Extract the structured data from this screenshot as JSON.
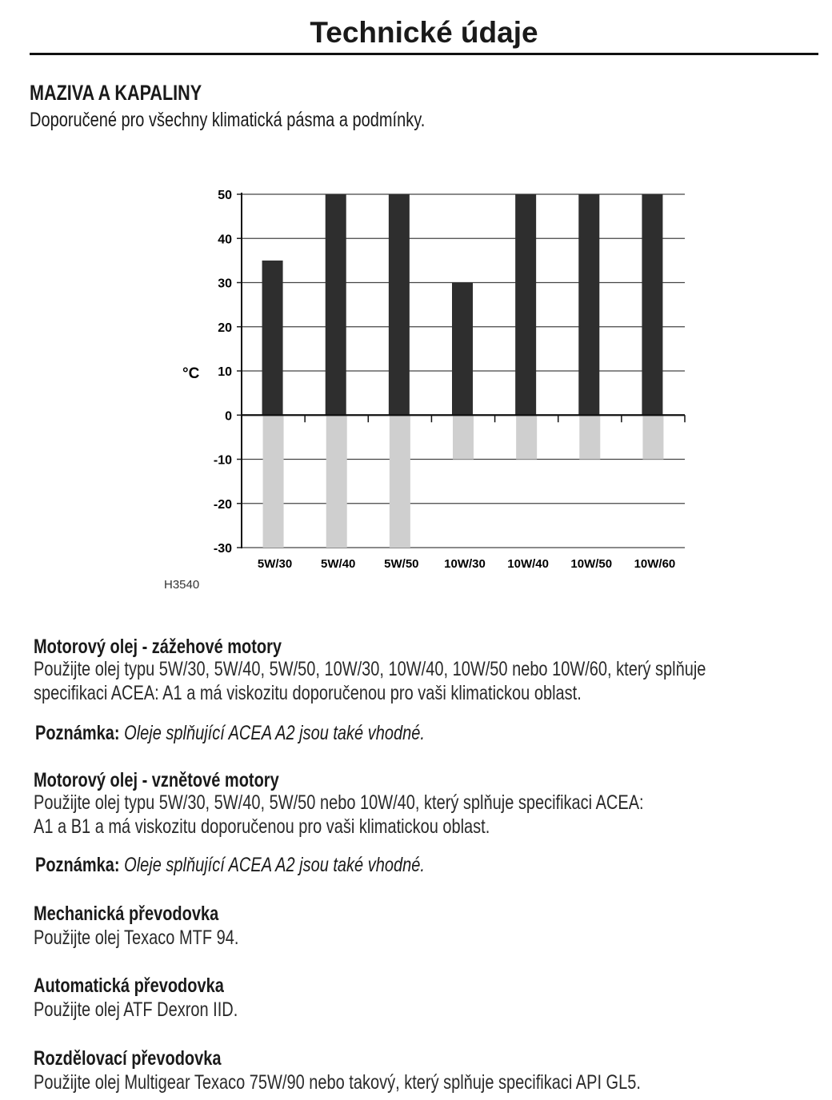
{
  "header": {
    "title": "Technické údaje"
  },
  "section": {
    "title": "MAZIVA A KAPALINY",
    "subtitle": "Doporučené pro všechny klimatická pásma a podmínky."
  },
  "chart_data": {
    "type": "bar",
    "ylabel": "°C",
    "ylim": [
      -30,
      50
    ],
    "yticks": [
      "50",
      "40",
      "30",
      "20",
      "10",
      "0",
      "-10",
      "-20",
      "-30"
    ],
    "grid": true,
    "categories": [
      "5W/30",
      "5W/40",
      "5W/50",
      "10W/30",
      "10W/40",
      "10W/50",
      "10W/60"
    ],
    "upper_limits": [
      35,
      50,
      50,
      30,
      50,
      50,
      50
    ],
    "lower_limits": [
      -30,
      -30,
      -30,
      -10,
      -10,
      -10,
      -10
    ],
    "colors": {
      "upper": "#2e2e2e",
      "lower": "#cfcfcf"
    },
    "figure_code": "H3540"
  },
  "sections": [
    {
      "heading": "Motorový olej - zážehové motory",
      "lines": [
        "Použijte olej typu 5W/30, 5W/40, 5W/50, 10W/30, 10W/40, 10W/50 nebo 10W/60, který splňuje",
        "specifikaci ACEA: A1 a má viskozitu doporučenou pro vaši klimatickou oblast."
      ],
      "note_label": "Poznámka:",
      "note_text": "Oleje splňující ACEA A2 jsou také vhodné."
    },
    {
      "heading": "Motorový olej - vznětové motory",
      "lines": [
        "Použijte olej typu 5W/30, 5W/40, 5W/50 nebo 10W/40, který splňuje specifikaci ACEA:",
        "A1 a B1 a má viskozitu doporučenou pro vaši klimatickou oblast."
      ],
      "note_label": "Poznámka:",
      "note_text": "Oleje splňující ACEA A2 jsou také vhodné."
    },
    {
      "heading": "Mechanická převodovka",
      "lines": [
        "Použijte olej Texaco MTF 94."
      ]
    },
    {
      "heading": "Automatická převodovka",
      "lines": [
        "Použijte olej ATF Dexron IID."
      ]
    },
    {
      "heading": "Rozdělovací převodovka",
      "lines": [
        "Použijte olej Multigear Texaco 75W/90 nebo takový, který splňuje specifikaci API GL5."
      ]
    }
  ]
}
